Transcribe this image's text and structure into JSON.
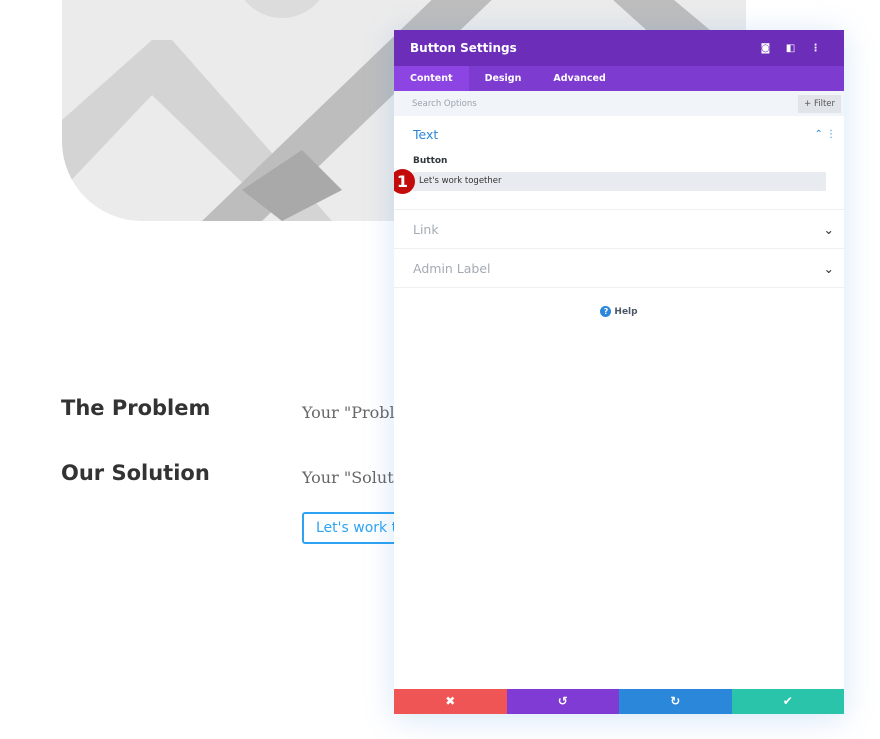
{
  "page": {
    "problem_heading": "The Problem",
    "problem_text": "Your \"Problem",
    "solution_heading": "Our Solution",
    "solution_text": "Your \"Solution",
    "cta_button": "Let's work together"
  },
  "panel": {
    "title": "Button Settings",
    "header_icons": [
      "expand-icon",
      "split-view-icon",
      "more-icon"
    ],
    "tabs": [
      "Content",
      "Design",
      "Advanced"
    ],
    "active_tab": "Content",
    "search_placeholder": "Search Options",
    "filter_label": "+ Filter",
    "text_section": {
      "title": "Text",
      "field_label": "Button",
      "field_value": "Let's work together"
    },
    "link_section": "Link",
    "admin_label_section": "Admin Label",
    "help_label": "Help",
    "step_badge": "1",
    "footer": {
      "discard": "✖",
      "undo": "↺",
      "redo": "↻",
      "save": "✔"
    },
    "colors": {
      "header": "#6c2eb9",
      "tabs": "#7e3bd0",
      "discard": "#ef5555",
      "undo": "#7f3bd4",
      "redo": "#2b87da",
      "save": "#29c4a9"
    }
  }
}
